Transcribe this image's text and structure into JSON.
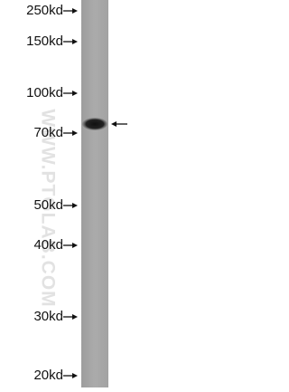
{
  "markers": [
    "250kd",
    "150kd",
    "100kd",
    "70kd",
    "50kd",
    "40kd",
    "30kd",
    "20kd"
  ],
  "watermark": "WWW.PTGLAB.COM"
}
